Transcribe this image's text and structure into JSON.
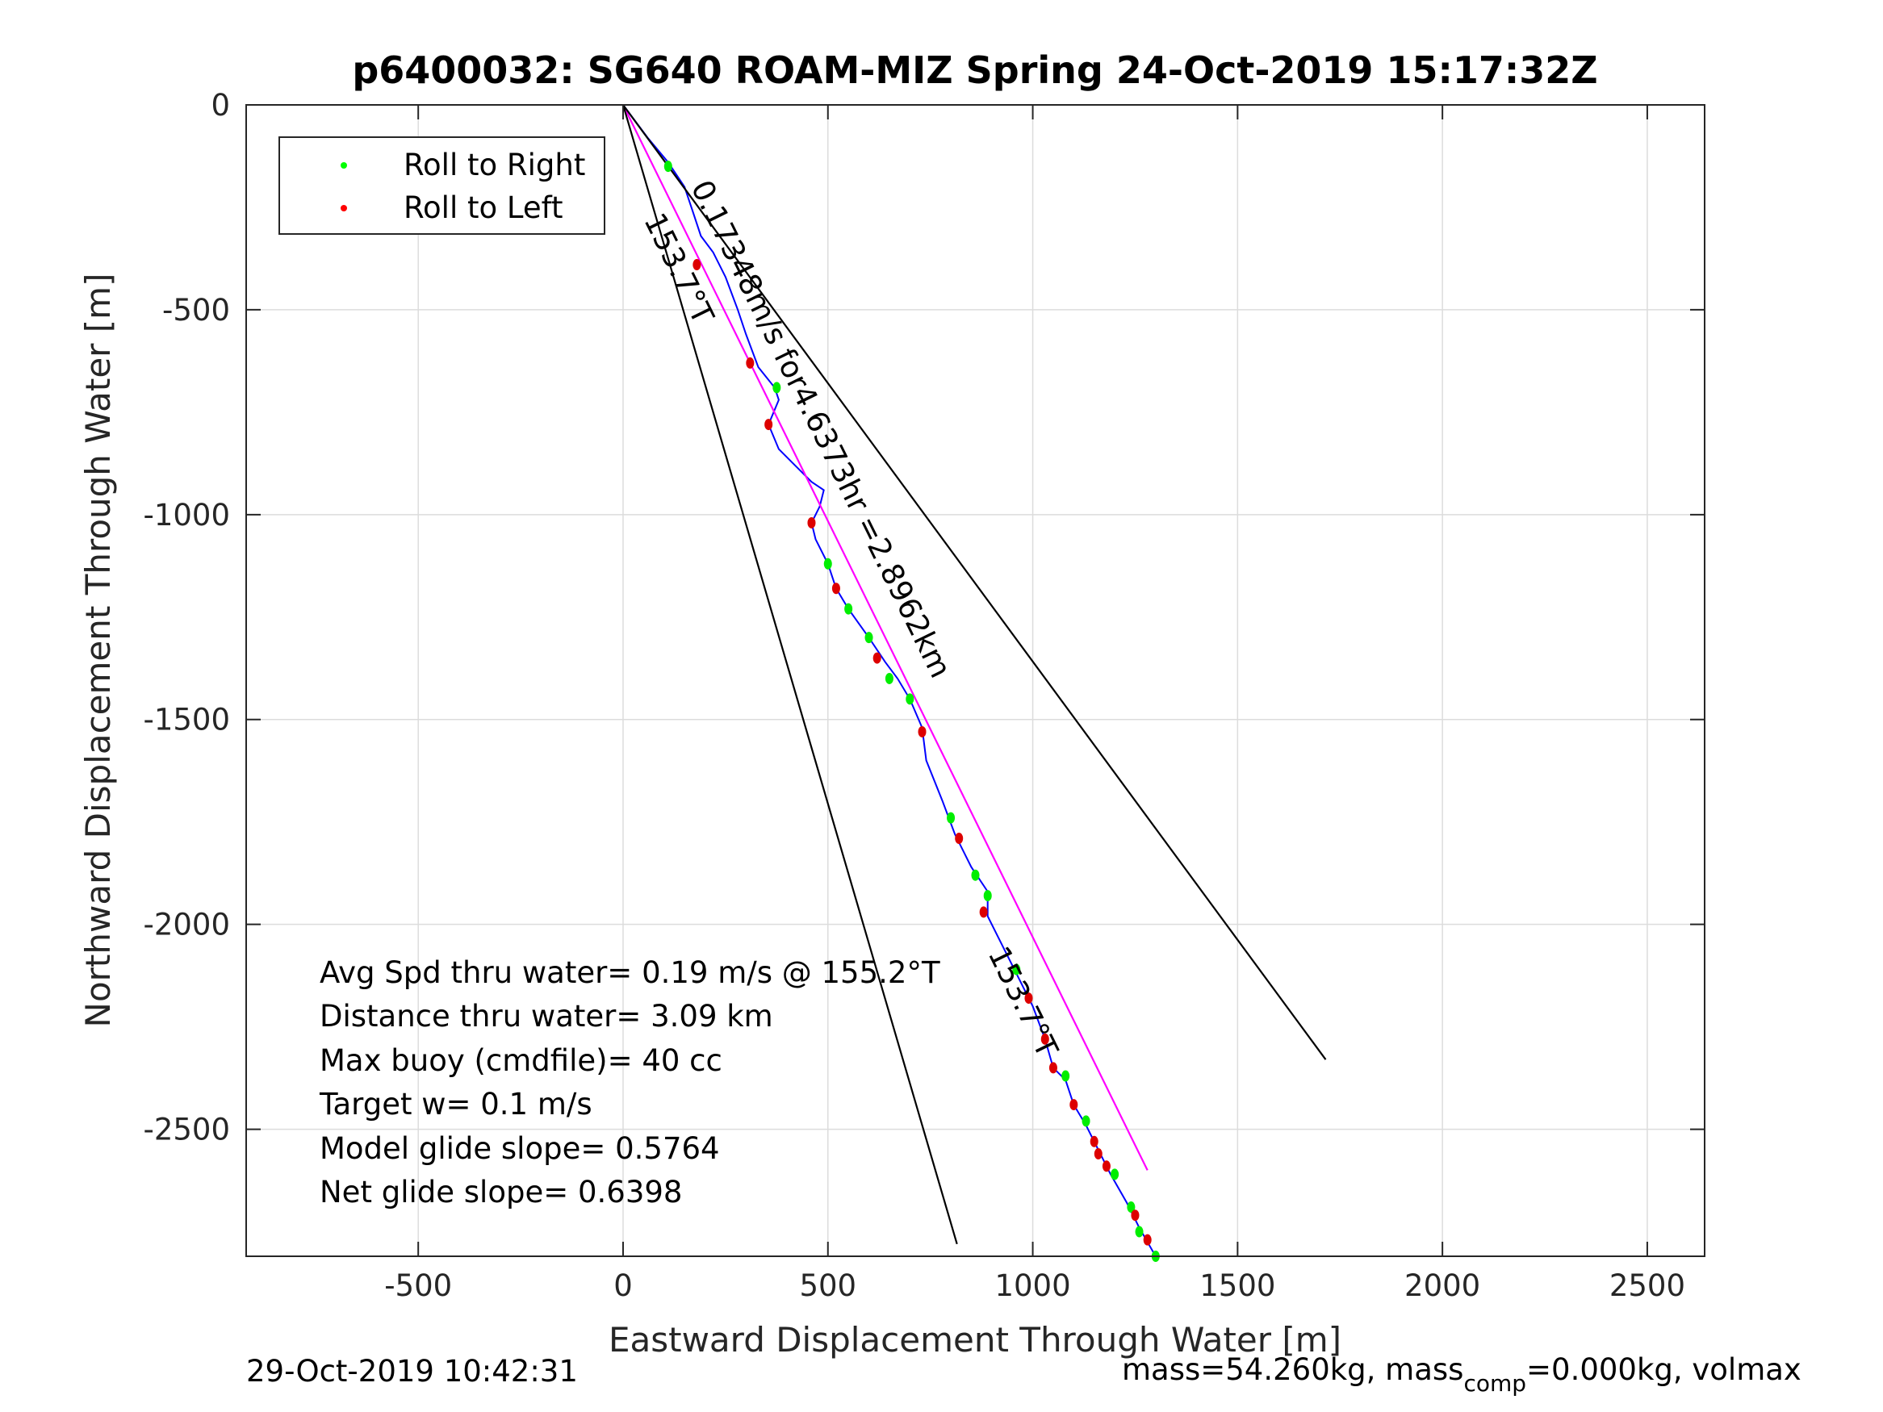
{
  "chart_data": {
    "type": "line",
    "title": "p6400032: SG640 ROAM-MIZ Spring 24-Oct-2019 15:17:32Z",
    "xlabel": "Eastward Displacement Through Water [m]",
    "ylabel": "Northward Displacement Through Water [m]",
    "xlim": [
      -920,
      2640
    ],
    "ylim": [
      -2810,
      0
    ],
    "xticks": [
      -500,
      0,
      500,
      1000,
      1500,
      2000,
      2500
    ],
    "yticks": [
      0,
      -500,
      -1000,
      -1500,
      -2000,
      -2500
    ],
    "xtick_labels": [
      "-500",
      "0",
      "500",
      "1000",
      "1500",
      "2000",
      "2500"
    ],
    "ytick_labels": [
      "0",
      "-500",
      "-1000",
      "-1500",
      "-2000",
      "-2500"
    ],
    "grid": true,
    "legend": {
      "position": "top-left",
      "entries": [
        {
          "label": "Roll to Right",
          "color": "#00ff00"
        },
        {
          "label": "Roll to Left",
          "color": "#ff0000"
        }
      ]
    },
    "series": [
      {
        "name": "track",
        "color": "#0000ff",
        "points": [
          [
            0,
            0
          ],
          [
            60,
            -80
          ],
          [
            110,
            -140
          ],
          [
            150,
            -200
          ],
          [
            170,
            -260
          ],
          [
            190,
            -320
          ],
          [
            220,
            -360
          ],
          [
            250,
            -420
          ],
          [
            280,
            -500
          ],
          [
            300,
            -560
          ],
          [
            330,
            -640
          ],
          [
            370,
            -690
          ],
          [
            380,
            -720
          ],
          [
            355,
            -780
          ],
          [
            380,
            -840
          ],
          [
            420,
            -880
          ],
          [
            460,
            -920
          ],
          [
            490,
            -940
          ],
          [
            480,
            -980
          ],
          [
            460,
            -1020
          ],
          [
            470,
            -1060
          ],
          [
            500,
            -1120
          ],
          [
            520,
            -1180
          ],
          [
            550,
            -1230
          ],
          [
            600,
            -1300
          ],
          [
            640,
            -1360
          ],
          [
            670,
            -1400
          ],
          [
            700,
            -1450
          ],
          [
            730,
            -1520
          ],
          [
            740,
            -1600
          ],
          [
            780,
            -1700
          ],
          [
            810,
            -1780
          ],
          [
            850,
            -1860
          ],
          [
            890,
            -1920
          ],
          [
            890,
            -1980
          ],
          [
            930,
            -2060
          ],
          [
            960,
            -2120
          ],
          [
            1000,
            -2200
          ],
          [
            1030,
            -2280
          ],
          [
            1050,
            -2350
          ],
          [
            1080,
            -2380
          ],
          [
            1100,
            -2440
          ],
          [
            1130,
            -2490
          ],
          [
            1160,
            -2550
          ],
          [
            1190,
            -2610
          ],
          [
            1230,
            -2680
          ],
          [
            1260,
            -2740
          ],
          [
            1300,
            -2810
          ]
        ]
      },
      {
        "name": "net heading line",
        "color": "#ff00ff",
        "points": [
          [
            0,
            0
          ],
          [
            1280,
            -2600
          ]
        ]
      },
      {
        "name": "bound line A",
        "color": "#000000",
        "points": [
          [
            0,
            0
          ],
          [
            815,
            -2780
          ]
        ]
      },
      {
        "name": "bound line B",
        "color": "#000000",
        "points": [
          [
            0,
            0
          ],
          [
            1715,
            -2330
          ]
        ]
      }
    ],
    "roll_right_points": [
      [
        110,
        -150
      ],
      [
        375,
        -690
      ],
      [
        500,
        -1120
      ],
      [
        550,
        -1230
      ],
      [
        600,
        -1300
      ],
      [
        650,
        -1400
      ],
      [
        700,
        -1450
      ],
      [
        800,
        -1740
      ],
      [
        860,
        -1880
      ],
      [
        890,
        -1930
      ],
      [
        960,
        -2110
      ],
      [
        1080,
        -2370
      ],
      [
        1130,
        -2480
      ],
      [
        1200,
        -2610
      ],
      [
        1240,
        -2690
      ],
      [
        1260,
        -2750
      ],
      [
        1300,
        -2810
      ]
    ],
    "roll_left_points": [
      [
        180,
        -390
      ],
      [
        310,
        -630
      ],
      [
        355,
        -780
      ],
      [
        460,
        -1020
      ],
      [
        520,
        -1180
      ],
      [
        620,
        -1350
      ],
      [
        730,
        -1530
      ],
      [
        820,
        -1790
      ],
      [
        880,
        -1970
      ],
      [
        990,
        -2180
      ],
      [
        1030,
        -2280
      ],
      [
        1050,
        -2350
      ],
      [
        1100,
        -2440
      ],
      [
        1150,
        -2530
      ],
      [
        1160,
        -2560
      ],
      [
        1180,
        -2590
      ],
      [
        1250,
        -2710
      ],
      [
        1280,
        -2770
      ]
    ],
    "annotations": [
      {
        "text": "0.17348m/s for4.6373hr =2.8962km",
        "x": 165,
        "y": -200
      },
      {
        "text": "153.7°T",
        "x": 50,
        "y": -280
      },
      {
        "text": "153.7°T",
        "x": 890,
        "y": -2070
      }
    ],
    "stats": [
      "Avg Spd thru water=  0.19 m/s @ 155.2°T",
      "Distance thru water=  3.09 km",
      "Max buoy (cmdfile)= 40 cc",
      "Target w= 0.1 m/s",
      "Model glide slope= 0.5764",
      "Net glide slope= 0.6398"
    ]
  },
  "footer": {
    "timestamp": "29-Oct-2019 10:42:31",
    "mass_text_a": "mass=54.260kg, mass",
    "mass_sub": "comp",
    "mass_text_b": "=0.000kg, volmax"
  }
}
